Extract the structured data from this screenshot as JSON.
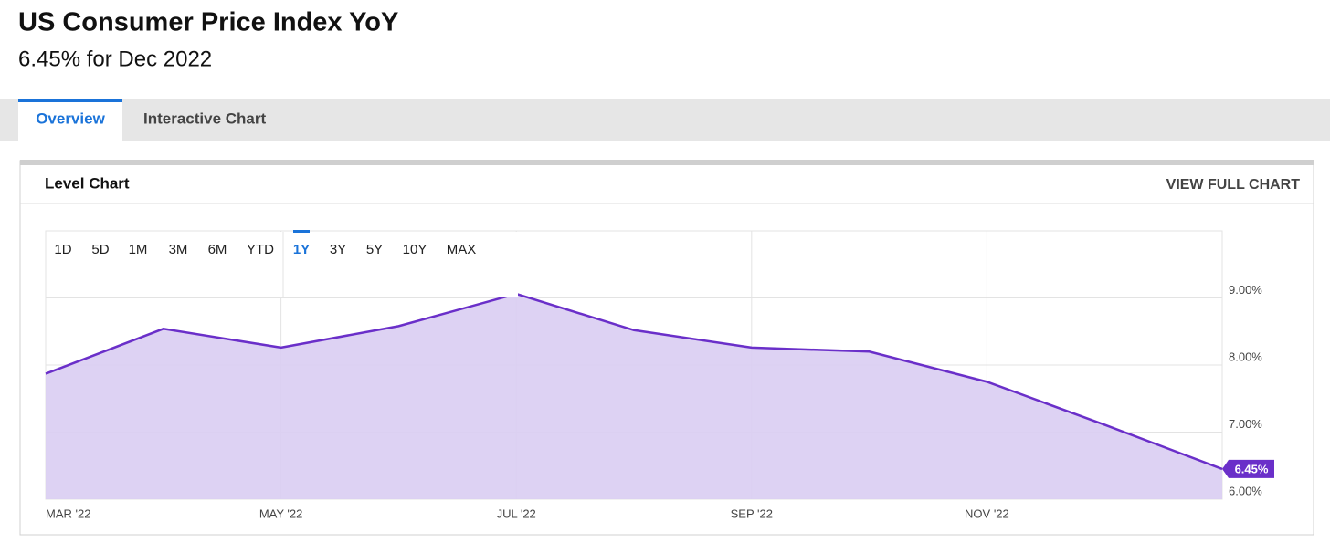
{
  "header": {
    "title": "US Consumer Price Index YoY",
    "subtitle": "6.45% for Dec 2022"
  },
  "tabs": [
    "Overview",
    "Interactive Chart"
  ],
  "panel": {
    "title": "Level Chart",
    "action": "VIEW FULL CHART"
  },
  "ranges": [
    "1D",
    "5D",
    "1M",
    "3M",
    "6M",
    "YTD",
    "1Y",
    "3Y",
    "5Y",
    "10Y",
    "MAX"
  ],
  "chart_data": {
    "type": "area",
    "categories": [
      "MAR '22",
      null,
      "MAY '22",
      null,
      "JUL '22",
      null,
      "SEP '22",
      null,
      "NOV '22",
      null,
      null
    ],
    "values": [
      7.87,
      8.54,
      8.26,
      8.58,
      9.06,
      8.52,
      8.26,
      8.2,
      7.75,
      7.11,
      6.45
    ],
    "value_labels": [
      null,
      null,
      null,
      null,
      null,
      null,
      null,
      null,
      null,
      null,
      "6.45%"
    ],
    "color": "#6a2fc9",
    "fill": "#d9cdf2",
    "ylim": [
      6,
      10
    ],
    "yticks": [
      {
        "value": 6,
        "label": "6.00%"
      },
      {
        "value": 7,
        "label": "7.00%"
      },
      {
        "value": 8,
        "label": "8.00%"
      },
      {
        "value": 9,
        "label": "9.00%"
      }
    ],
    "grid": true
  }
}
